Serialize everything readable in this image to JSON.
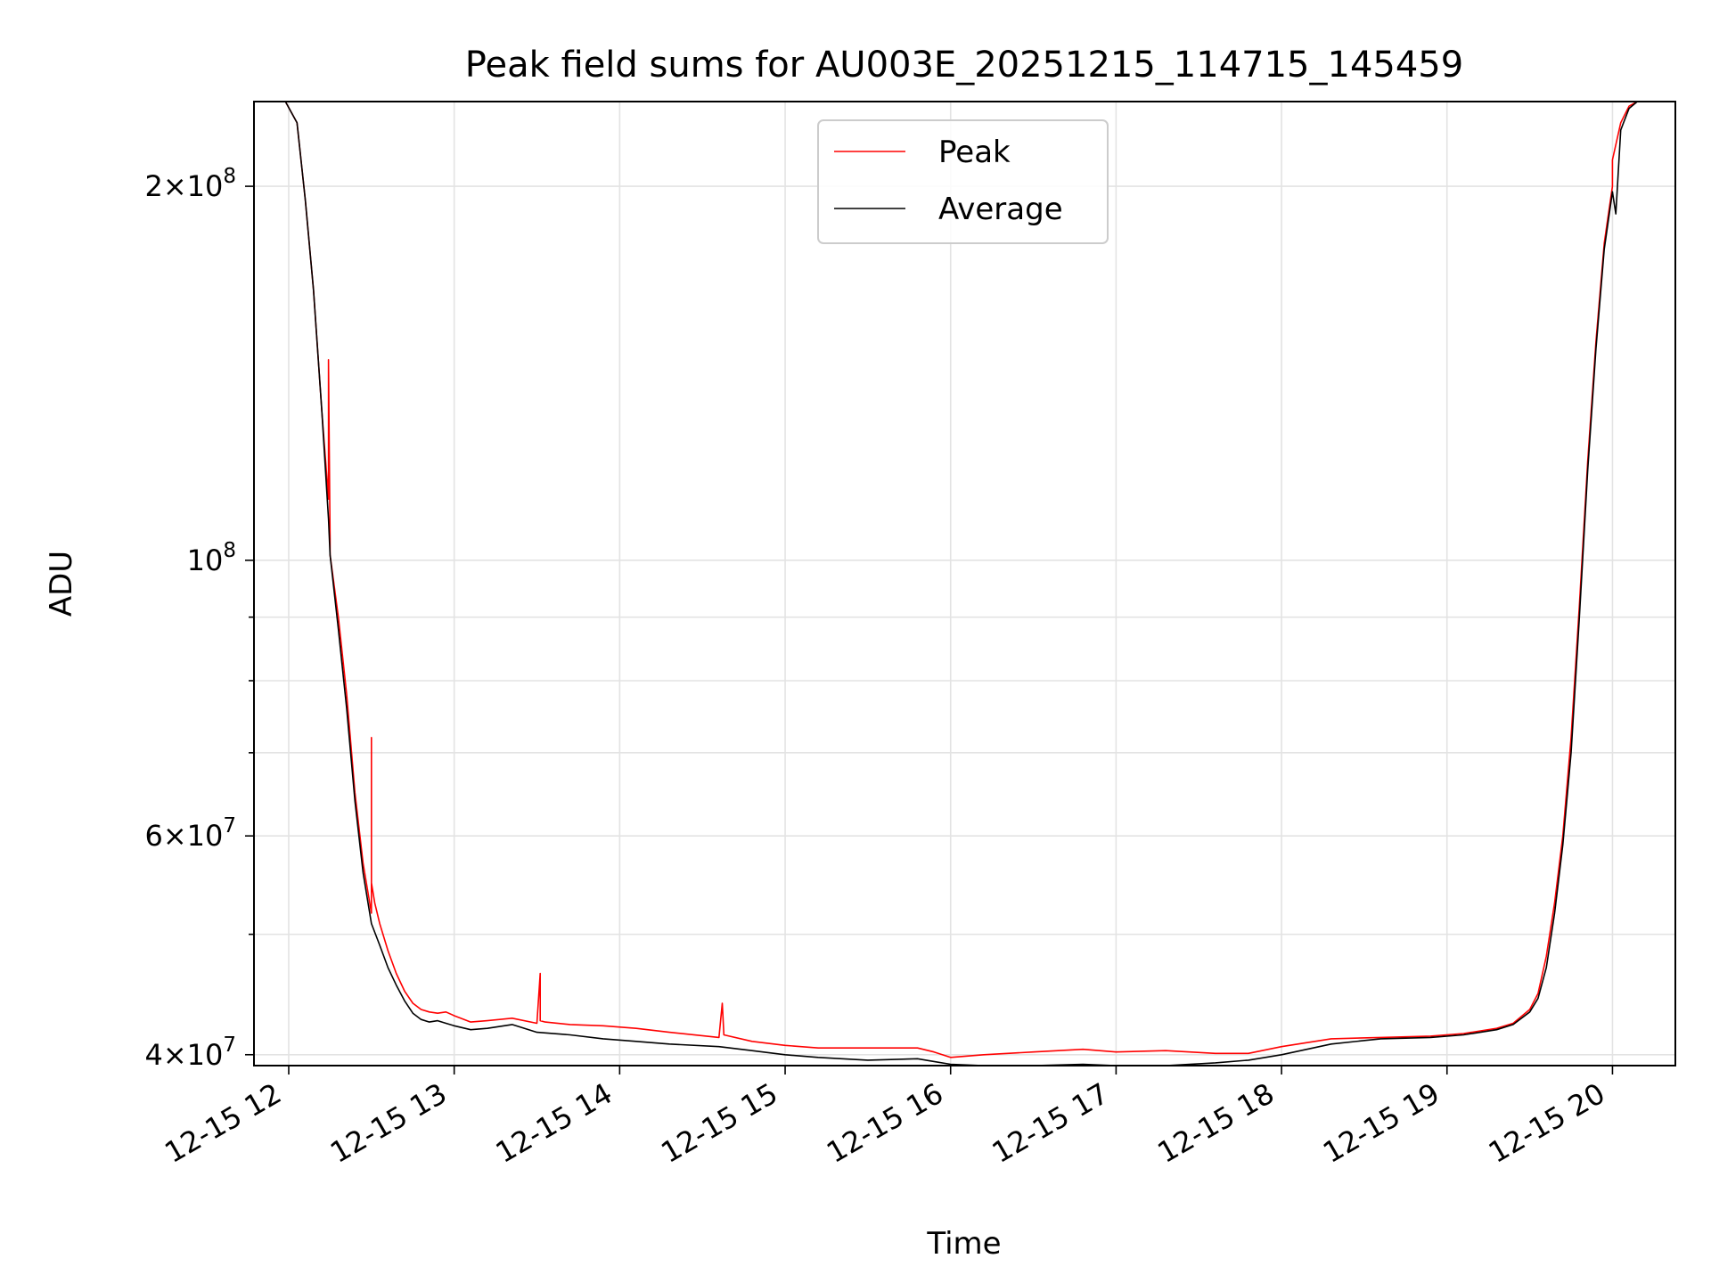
{
  "chart_data": {
    "type": "line",
    "title": "Peak field sums for AU003E_20251215_114715_145459",
    "xlabel": "Time",
    "ylabel": "ADU",
    "yscale": "log",
    "xlim": [
      11.79,
      20.38
    ],
    "ylim": [
      39200000,
      234000000
    ],
    "x_ticks": [
      {
        "value": 12,
        "label": "12-15 12"
      },
      {
        "value": 13,
        "label": "12-15 13"
      },
      {
        "value": 14,
        "label": "12-15 14"
      },
      {
        "value": 15,
        "label": "12-15 15"
      },
      {
        "value": 16,
        "label": "12-15 16"
      },
      {
        "value": 17,
        "label": "12-15 17"
      },
      {
        "value": 18,
        "label": "12-15 18"
      },
      {
        "value": 19,
        "label": "12-15 19"
      },
      {
        "value": 20,
        "label": "12-15 20"
      }
    ],
    "y_major_ticks": [
      {
        "value": 40000000,
        "mant": "4",
        "exp": "7"
      },
      {
        "value": 60000000,
        "mant": "6",
        "exp": "7"
      },
      {
        "value": 100000000,
        "mant": "",
        "exp": "8"
      },
      {
        "value": 200000000,
        "mant": "2",
        "exp": "8"
      }
    ],
    "y_minor_ticks": [
      50000000,
      70000000,
      80000000,
      90000000
    ],
    "legend": {
      "position": "upper center"
    },
    "saturation_level": 234000000,
    "series": [
      {
        "name": "Peak",
        "color": "#ff0000",
        "x": [
          11.79,
          11.9,
          11.98,
          12.05,
          12.1,
          12.15,
          12.2,
          12.24,
          12.24,
          12.25,
          12.25,
          12.3,
          12.35,
          12.4,
          12.45,
          12.5,
          12.5,
          12.5,
          12.52,
          12.55,
          12.6,
          12.65,
          12.7,
          12.75,
          12.8,
          12.85,
          12.9,
          12.95,
          13.0,
          13.1,
          13.2,
          13.35,
          13.5,
          13.52,
          13.52,
          13.55,
          13.7,
          13.9,
          14.1,
          14.3,
          14.6,
          14.62,
          14.63,
          14.8,
          15.0,
          15.2,
          15.5,
          15.8,
          15.9,
          16.0,
          16.2,
          16.5,
          16.8,
          17.0,
          17.3,
          17.6,
          17.8,
          18.0,
          18.3,
          18.6,
          18.9,
          19.1,
          19.3,
          19.4,
          19.5,
          19.55,
          19.6,
          19.65,
          19.7,
          19.75,
          19.8,
          19.85,
          19.9,
          19.95,
          20.0,
          20.0,
          20.05,
          20.1,
          20.15,
          20.2,
          20.38
        ],
        "y": [
          234000000,
          234000000,
          234000000,
          225000000,
          195000000,
          165000000,
          132000000,
          112000000,
          145000000,
          104000000,
          101000000,
          90000000,
          78000000,
          65000000,
          57000000,
          52000000,
          72000000,
          55000000,
          53000000,
          51000000,
          48500000,
          46500000,
          45000000,
          44000000,
          43500000,
          43300000,
          43200000,
          43300000,
          43000000,
          42500000,
          42600000,
          42800000,
          42400000,
          46500000,
          42600000,
          42500000,
          42300000,
          42200000,
          42000000,
          41700000,
          41300000,
          44000000,
          41500000,
          41000000,
          40700000,
          40500000,
          40500000,
          40500000,
          40200000,
          39800000,
          40000000,
          40200000,
          40400000,
          40200000,
          40300000,
          40100000,
          40100000,
          40600000,
          41200000,
          41300000,
          41400000,
          41600000,
          42000000,
          42400000,
          43500000,
          44800000,
          48000000,
          53000000,
          60000000,
          72000000,
          92000000,
          120000000,
          150000000,
          180000000,
          200000000,
          210000000,
          225000000,
          232000000,
          234000000,
          234000000,
          234000000
        ]
      },
      {
        "name": "Average",
        "color": "#000000",
        "x": [
          11.79,
          11.9,
          11.98,
          12.05,
          12.1,
          12.15,
          12.2,
          12.24,
          12.25,
          12.3,
          12.35,
          12.4,
          12.45,
          12.5,
          12.55,
          12.6,
          12.65,
          12.7,
          12.75,
          12.8,
          12.85,
          12.9,
          12.95,
          13.0,
          13.1,
          13.2,
          13.35,
          13.5,
          13.7,
          13.9,
          14.1,
          14.3,
          14.6,
          14.8,
          15.0,
          15.2,
          15.5,
          15.8,
          15.9,
          16.0,
          16.2,
          16.5,
          16.8,
          17.0,
          17.3,
          17.6,
          17.8,
          18.0,
          18.3,
          18.6,
          18.9,
          19.1,
          19.3,
          19.4,
          19.5,
          19.55,
          19.6,
          19.65,
          19.7,
          19.75,
          19.8,
          19.85,
          19.9,
          19.95,
          20.0,
          20.02,
          20.05,
          20.1,
          20.15,
          20.2,
          20.38
        ],
        "y": [
          234000000,
          234000000,
          234000000,
          225000000,
          195000000,
          165000000,
          132000000,
          108000000,
          101000000,
          88000000,
          76000000,
          64000000,
          56000000,
          51000000,
          49000000,
          47000000,
          45500000,
          44200000,
          43200000,
          42700000,
          42500000,
          42600000,
          42400000,
          42200000,
          41900000,
          42000000,
          42300000,
          41700000,
          41500000,
          41200000,
          41000000,
          40800000,
          40600000,
          40300000,
          40000000,
          39800000,
          39600000,
          39700000,
          39500000,
          39300000,
          39100000,
          39200000,
          39300000,
          39200000,
          39200000,
          39400000,
          39600000,
          40000000,
          40800000,
          41200000,
          41300000,
          41500000,
          41900000,
          42300000,
          43300000,
          44400000,
          47000000,
          52000000,
          59000000,
          70000000,
          90000000,
          118000000,
          148000000,
          178000000,
          198000000,
          190000000,
          222000000,
          231000000,
          234000000,
          234000000,
          234000000
        ]
      }
    ]
  }
}
